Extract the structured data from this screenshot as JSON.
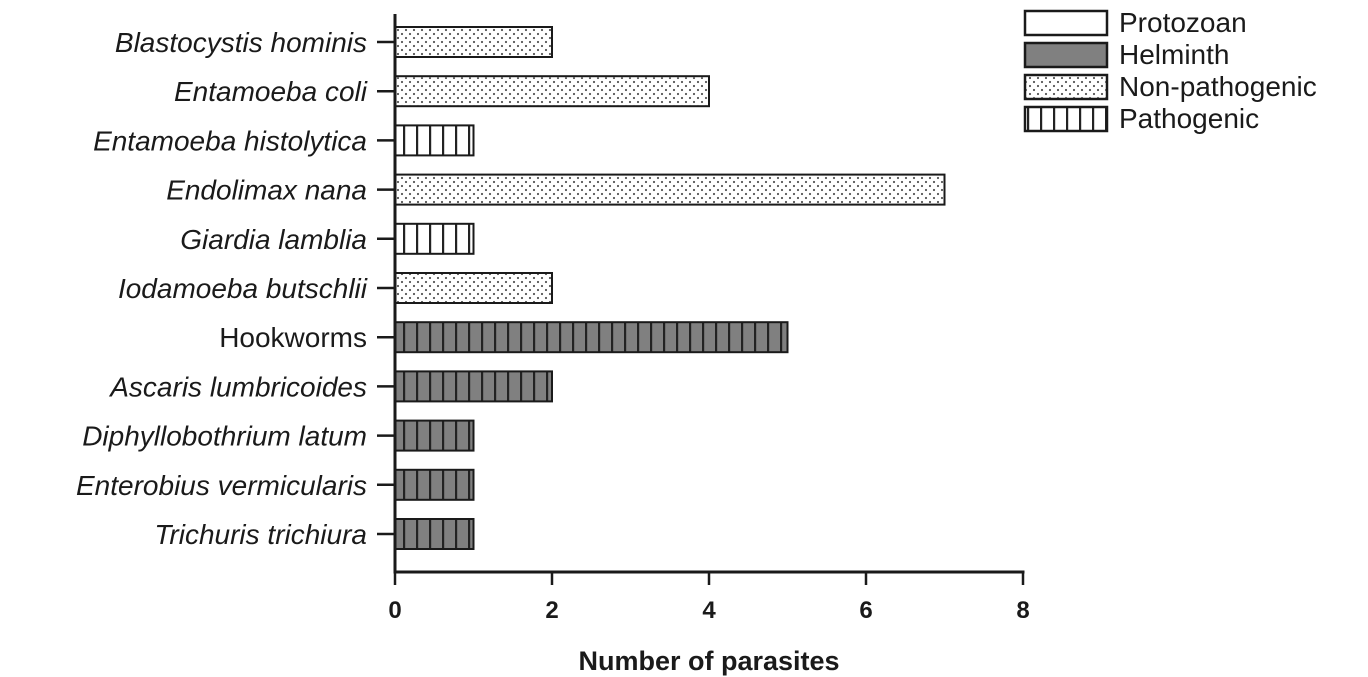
{
  "chart_data": {
    "type": "bar",
    "orientation": "horizontal",
    "xlabel": "Number of parasites",
    "xlim": [
      0,
      8
    ],
    "xticks": [
      0,
      2,
      4,
      6,
      8
    ],
    "grid": false,
    "legend_position": "top-right",
    "legend": [
      {
        "name": "Protozoan",
        "fill": "#ffffff",
        "pattern": "none"
      },
      {
        "name": "Helminth",
        "fill": "#808080",
        "pattern": "none"
      },
      {
        "name": "Non-pathogenic",
        "fill": "#ffffff",
        "pattern": "dots"
      },
      {
        "name": "Pathogenic",
        "fill": "#ffffff",
        "pattern": "vertical-lines"
      }
    ],
    "categories": [
      {
        "label": "Blastocystis hominis",
        "italic": true,
        "value": 2,
        "group": "Protozoan",
        "pathogenicity": "Non-pathogenic"
      },
      {
        "label": "Entamoeba coli",
        "italic": true,
        "value": 4,
        "group": "Protozoan",
        "pathogenicity": "Non-pathogenic"
      },
      {
        "label": "Entamoeba histolytica",
        "italic": true,
        "value": 1,
        "group": "Protozoan",
        "pathogenicity": "Pathogenic"
      },
      {
        "label": "Endolimax nana",
        "italic": true,
        "value": 7,
        "group": "Protozoan",
        "pathogenicity": "Non-pathogenic"
      },
      {
        "label": "Giardia lamblia",
        "italic": true,
        "value": 1,
        "group": "Protozoan",
        "pathogenicity": "Pathogenic"
      },
      {
        "label": "Iodamoeba butschlii",
        "italic": true,
        "value": 2,
        "group": "Protozoan",
        "pathogenicity": "Non-pathogenic"
      },
      {
        "label": "Hookworms",
        "italic": false,
        "value": 5,
        "group": "Helminth",
        "pathogenicity": "Pathogenic"
      },
      {
        "label": "Ascaris lumbricoides",
        "italic": true,
        "value": 2,
        "group": "Helminth",
        "pathogenicity": "Pathogenic"
      },
      {
        "label": "Diphyllobothrium latum",
        "italic": true,
        "value": 1,
        "group": "Helminth",
        "pathogenicity": "Pathogenic"
      },
      {
        "label": "Enterobius vermicularis",
        "italic": true,
        "value": 1,
        "group": "Helminth",
        "pathogenicity": "Pathogenic"
      },
      {
        "label": "Trichuris trichiura",
        "italic": true,
        "value": 1,
        "group": "Helminth",
        "pathogenicity": "Pathogenic"
      }
    ]
  }
}
